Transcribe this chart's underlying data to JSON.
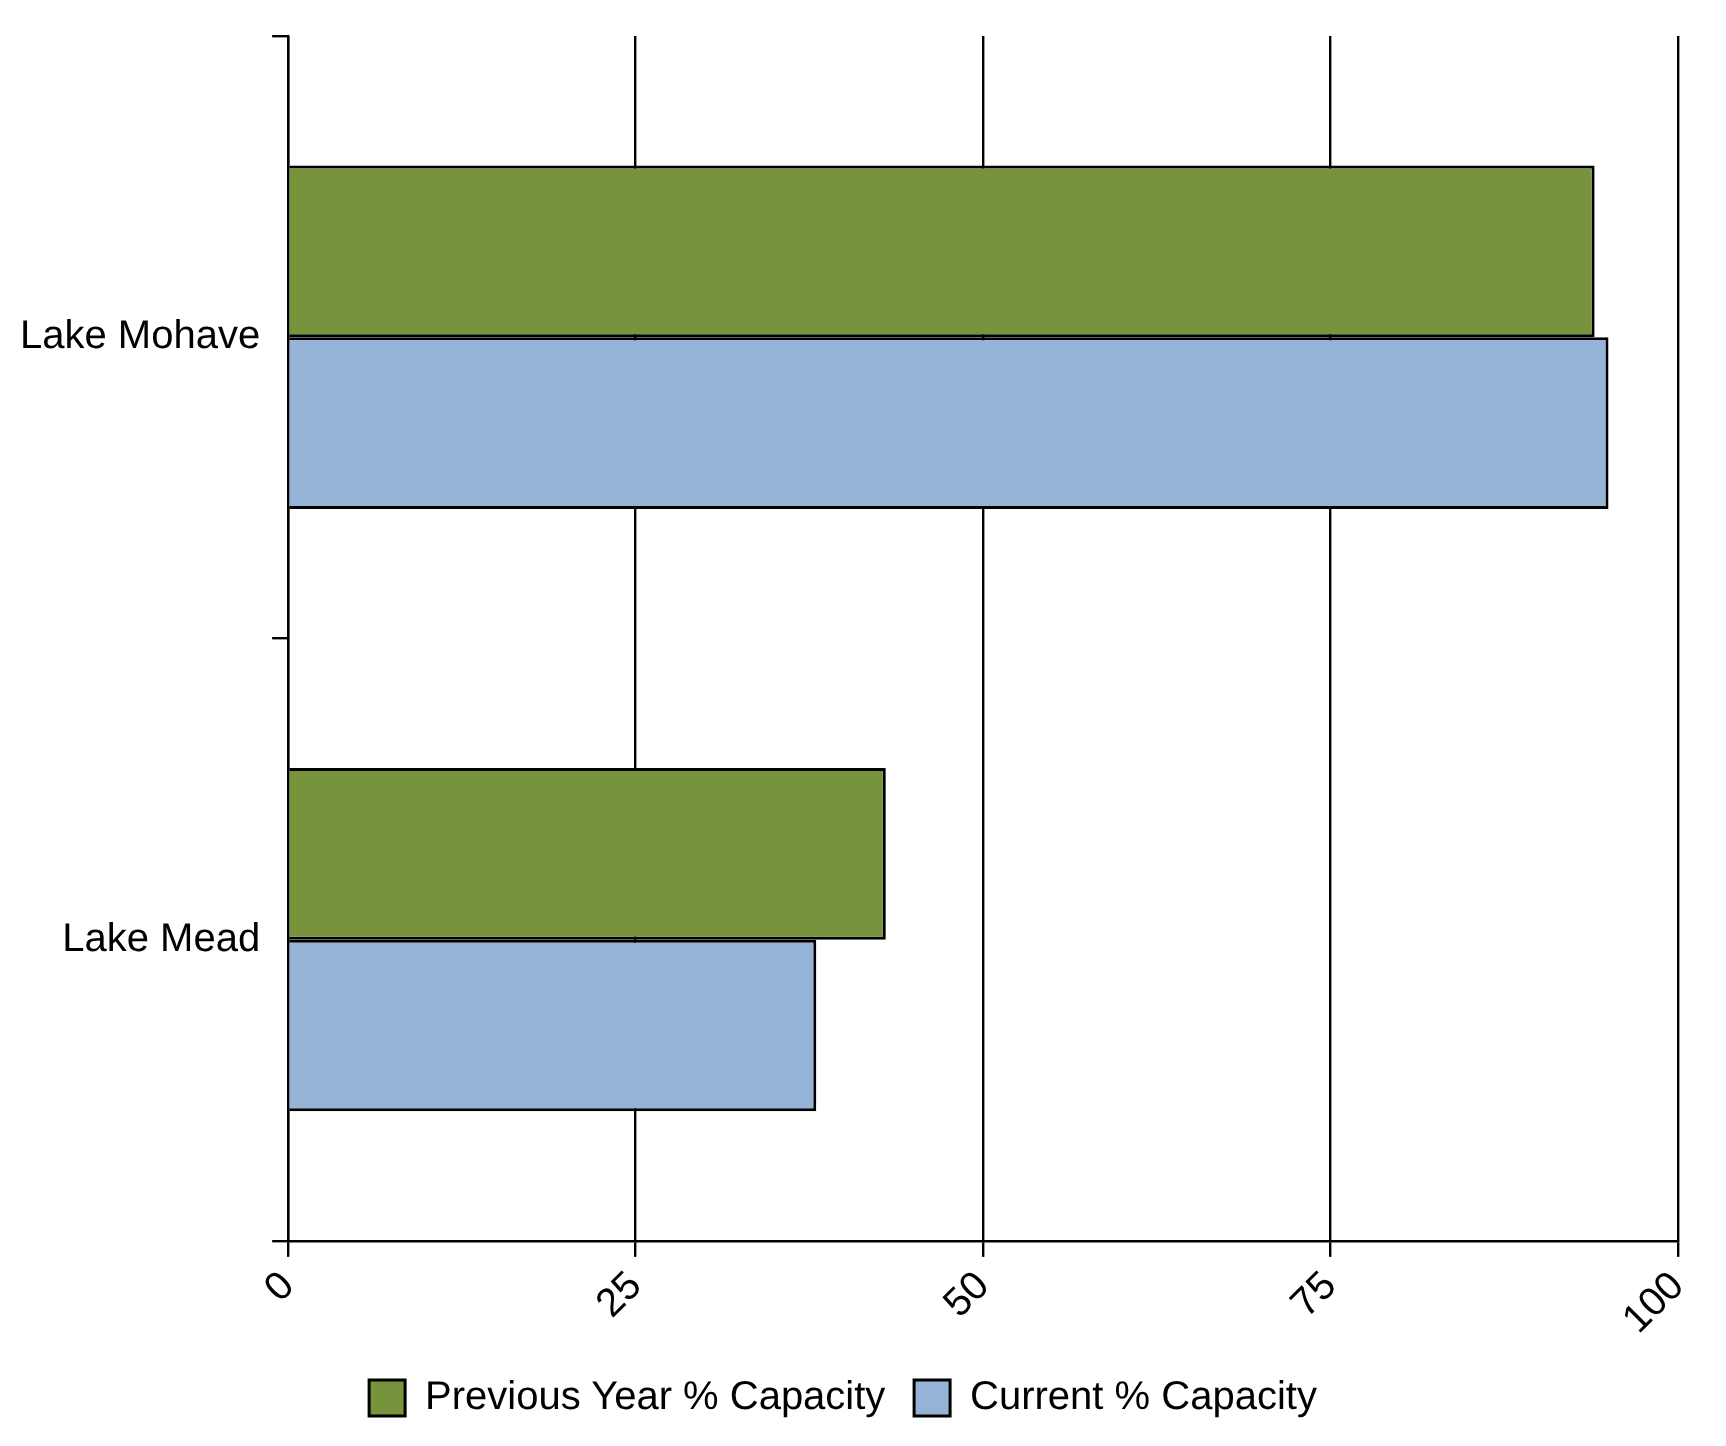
{
  "chart_data": {
    "type": "bar",
    "orientation": "horizontal",
    "categories": [
      "Lake Mohave",
      "Lake Mead"
    ],
    "series": [
      {
        "name": "Previous Year % Capacity",
        "color": "#77933c",
        "values": [
          94,
          43
        ]
      },
      {
        "name": "Current % Capacity",
        "color": "#95b3d7",
        "values": [
          95,
          38
        ]
      }
    ],
    "xlim": [
      0,
      100
    ],
    "xticks": [
      0,
      25,
      50,
      75,
      100
    ],
    "grid": "x",
    "legend": "bottom"
  }
}
